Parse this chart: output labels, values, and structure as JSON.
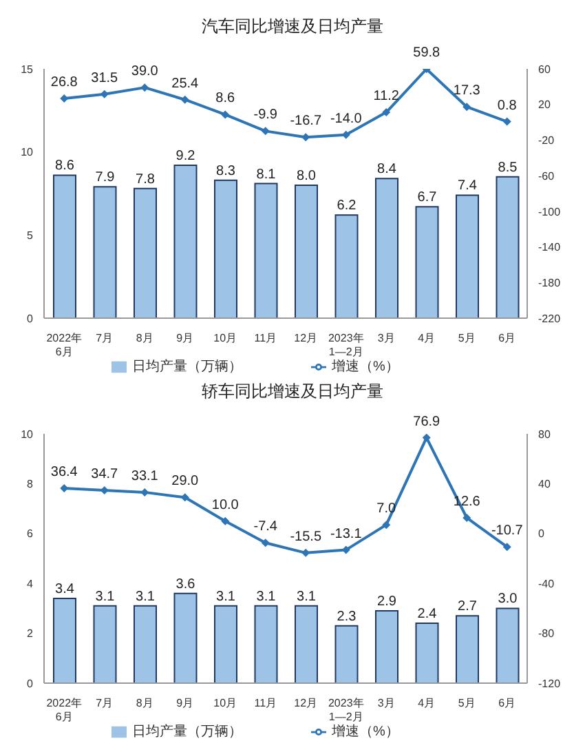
{
  "chart_data": [
    {
      "type": "bar",
      "title": "汽车同比增速及日均产量",
      "categories": [
        "2022年\n6月",
        "7月",
        "8月",
        "9月",
        "10月",
        "11月",
        "12月",
        "2023年\n1—2月",
        "3月",
        "4月",
        "5月",
        "6月"
      ],
      "series": [
        {
          "name": "日均产量（万辆）",
          "color": "#9dc3e6",
          "values": [
            8.6,
            7.9,
            7.8,
            9.2,
            8.3,
            8.1,
            8.0,
            6.2,
            8.4,
            6.7,
            7.4,
            8.5
          ],
          "value_labels": [
            "8.6",
            "7.9",
            "7.8",
            "9.2",
            "8.3",
            "8.1",
            "8.0",
            "6.2",
            "8.4",
            "6.7",
            "7.4",
            "8.5"
          ]
        },
        {
          "name": "增速（%）",
          "type": "line",
          "axis": "y2",
          "color": "#2e75b6",
          "values": [
            26.8,
            31.5,
            39.0,
            25.4,
            8.6,
            -9.9,
            -16.7,
            -14.0,
            11.2,
            59.8,
            17.3,
            0.8
          ],
          "value_labels": [
            "26.8",
            "31.5",
            "39.0",
            "25.4",
            "8.6",
            "-9.9",
            "-16.7",
            "-14.0",
            "11.2",
            "59.8",
            "17.3",
            "0.8"
          ]
        }
      ],
      "ylim": [
        0,
        15
      ],
      "yticks": [
        0,
        5,
        10,
        15
      ],
      "y2lim": [
        -220,
        60
      ],
      "y2ticks": [
        -220,
        -180,
        -140,
        -100,
        -60,
        -20,
        20,
        60
      ],
      "legend": "bottom",
      "marker": "diamond"
    },
    {
      "type": "bar",
      "title": "轿车同比增速及日均产量",
      "categories": [
        "2022年\n6月",
        "7月",
        "8月",
        "9月",
        "10月",
        "11月",
        "12月",
        "2023年\n1—2月",
        "3月",
        "4月",
        "5月",
        "6月"
      ],
      "series": [
        {
          "name": "日均产量（万辆）",
          "color": "#9dc3e6",
          "values": [
            3.4,
            3.1,
            3.1,
            3.6,
            3.1,
            3.1,
            3.1,
            2.3,
            2.9,
            2.4,
            2.7,
            3.0
          ],
          "value_labels": [
            "3.4",
            "3.1",
            "3.1",
            "3.6",
            "3.1",
            "3.1",
            "3.1",
            "2.3",
            "2.9",
            "2.4",
            "2.7",
            "3.0"
          ]
        },
        {
          "name": "增速（%）",
          "type": "line",
          "axis": "y2",
          "color": "#2e75b6",
          "values": [
            36.4,
            34.7,
            33.1,
            29.0,
            10.0,
            -7.4,
            -15.5,
            -13.1,
            7.0,
            76.9,
            12.6,
            -10.7
          ],
          "value_labels": [
            "36.4",
            "34.7",
            "33.1",
            "29.0",
            "10.0",
            "-7.4",
            "-15.5",
            "-13.1",
            "7.0",
            "76.9",
            "12.6",
            "-10.7"
          ]
        }
      ],
      "ylim": [
        0,
        10
      ],
      "yticks": [
        0,
        2,
        4,
        6,
        8,
        10
      ],
      "y2lim": [
        -120,
        80
      ],
      "y2ticks": [
        -120,
        -80,
        -40,
        0,
        40,
        80
      ],
      "legend": "bottom",
      "marker": "diamond"
    }
  ]
}
